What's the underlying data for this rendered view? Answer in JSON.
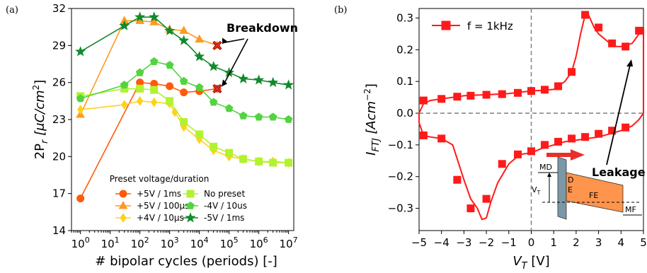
{
  "chart_data": [
    {
      "type": "line",
      "panel": "(a)",
      "xlabel": "# bipolar cycles (periods) [-]",
      "ylabel": "2P_r [μC/cm^2]",
      "xscale": "log",
      "xlim": [
        0.5,
        15000000
      ],
      "ylim": [
        14,
        32
      ],
      "yticks": [
        14,
        17,
        20,
        23,
        26,
        29,
        32
      ],
      "xtick_labels": [
        "10^0",
        "10^1",
        "10^2",
        "10^3",
        "10^4",
        "10^5",
        "10^6",
        "10^7"
      ],
      "legend_title": "Preset voltage/duration",
      "legend_placement": "lower-center",
      "series": [
        {
          "name": "+5V / 1ms",
          "color": "#ff5a0a",
          "marker": "circle",
          "x": [
            1,
            100,
            300,
            1000,
            3000,
            10000,
            40000
          ],
          "y": [
            16.6,
            26.0,
            25.9,
            25.7,
            25.2,
            25.3,
            25.5
          ]
        },
        {
          "name": "+5V / 100μs",
          "color": "#ff9a1f",
          "marker": "triangle",
          "x": [
            1,
            30,
            100,
            300,
            1000,
            3000,
            10000,
            40000
          ],
          "y": [
            23.4,
            31.0,
            31.0,
            30.9,
            30.3,
            30.2,
            29.5,
            29.0
          ]
        },
        {
          "name": "+4V / 10μs",
          "color": "#ffd21a",
          "marker": "diamond",
          "x": [
            1,
            30,
            100,
            300,
            1000,
            1500,
            3000,
            10000,
            30000,
            100000,
            300000,
            1000000,
            3000000,
            10000000
          ],
          "y": [
            23.8,
            24.2,
            24.5,
            24.4,
            24.3,
            23.6,
            22.4,
            21.4,
            20.5,
            20.0,
            19.8,
            19.6,
            19.6,
            19.5
          ]
        },
        {
          "name": "No preset",
          "color": "#b2f230",
          "marker": "square",
          "x": [
            1,
            30,
            100,
            300,
            1000,
            3000,
            10000,
            30000,
            100000,
            300000,
            1000000,
            3000000,
            10000000
          ],
          "y": [
            24.9,
            25.5,
            25.5,
            25.4,
            24.5,
            22.8,
            21.8,
            20.8,
            20.3,
            19.8,
            19.6,
            19.5,
            19.5
          ]
        },
        {
          "name": "-4V / 10us",
          "color": "#52d440",
          "marker": "pentagon",
          "x": [
            1,
            30,
            100,
            300,
            1000,
            3000,
            10000,
            30000,
            100000,
            300000,
            1000000,
            3000000,
            10000000
          ],
          "y": [
            24.7,
            25.8,
            26.8,
            27.7,
            27.4,
            26.1,
            25.6,
            24.4,
            23.9,
            23.3,
            23.2,
            23.2,
            23.0
          ]
        },
        {
          "name": "-5V / 1ms",
          "color": "#128a2c",
          "marker": "star",
          "x": [
            1,
            30,
            100,
            300,
            1000,
            3000,
            10000,
            30000,
            100000,
            300000,
            1000000,
            3000000,
            10000000
          ],
          "y": [
            28.5,
            30.6,
            31.3,
            31.3,
            30.2,
            29.4,
            28.1,
            27.3,
            26.8,
            26.3,
            26.2,
            26.0,
            25.8
          ]
        }
      ],
      "annotations": [
        {
          "text": "Breakdown",
          "points": [
            [
              40000,
              29.0
            ],
            [
              40000,
              25.5
            ]
          ]
        }
      ]
    },
    {
      "type": "line",
      "panel": "(b)",
      "xlabel": "V_T [V]",
      "ylabel": "I_FTJ [Acm^-2]",
      "xlim": [
        -5,
        5
      ],
      "ylim": [
        -0.37,
        0.33
      ],
      "xticks": [
        -5,
        -4,
        -3,
        -2,
        -1,
        0,
        1,
        2,
        3,
        4,
        5
      ],
      "xtick_labels": [
        "−5",
        "−4",
        "−3",
        "−2",
        "−1",
        "0",
        "1",
        "2",
        "3",
        "4",
        "5"
      ],
      "yticks": [
        -0.3,
        -0.2,
        -0.1,
        0.0,
        0.1,
        0.2,
        0.3
      ],
      "ytick_labels": [
        "−0.3",
        "−0.2",
        "−0.1",
        "0.0",
        "0.1",
        "0.2",
        "0.3"
      ],
      "legend_placement": "top-left",
      "series": [
        {
          "name": "f = 1kHz",
          "color": "#ff1a1a",
          "marker": "square",
          "upper": {
            "x": [
              -5,
              -4.8,
              -4.5,
              -4,
              -3.5,
              -3,
              -2.5,
              -2,
              -1.5,
              -1,
              -0.5,
              0,
              0.5,
              1,
              1.5,
              1.8,
              2.0,
              2.2,
              2.4,
              2.55,
              2.8,
              3.0,
              3.5,
              3.8,
              4.0,
              4.5,
              4.8,
              5.0
            ],
            "y": [
              0.0,
              0.03,
              0.04,
              0.045,
              0.05,
              0.055,
              0.057,
              0.058,
              0.06,
              0.062,
              0.066,
              0.07,
              0.072,
              0.075,
              0.1,
              0.13,
              0.18,
              0.25,
              0.31,
              0.31,
              0.27,
              0.25,
              0.22,
              0.21,
              0.21,
              0.22,
              0.25,
              0.27
            ]
          },
          "lower": {
            "x": [
              5.0,
              4.8,
              4.5,
              4.0,
              3.5,
              3.0,
              2.5,
              2.0,
              1.5,
              1.0,
              0.5,
              0.0,
              -0.5,
              -1.0,
              -1.5,
              -1.8,
              -2.0,
              -2.2,
              -2.4,
              -2.7,
              -3.0,
              -3.5,
              -4.0,
              -4.5,
              -4.8,
              -5.0
            ],
            "y": [
              0.0,
              -0.02,
              -0.04,
              -0.055,
              -0.065,
              -0.075,
              -0.08,
              -0.085,
              -0.09,
              -0.1,
              -0.11,
              -0.125,
              -0.13,
              -0.16,
              -0.22,
              -0.28,
              -0.33,
              -0.335,
              -0.3,
              -0.27,
              -0.21,
              -0.1,
              -0.08,
              -0.075,
              -0.07,
              -0.03
            ]
          }
        }
      ],
      "markers": {
        "x": [
          -4.8,
          -4.0,
          -3.3,
          -2.7,
          -2.0,
          -1.3,
          -0.6,
          0.0,
          0.6,
          1.2,
          1.8,
          2.4,
          3.0,
          3.6,
          4.2,
          4.8,
          4.2,
          3.6,
          3.0,
          2.4,
          1.8,
          1.2,
          0.6,
          0.0,
          -0.6,
          -1.3,
          -2.0,
          -2.7,
          -3.3,
          -4.0,
          -4.8
        ],
        "y": [
          0.04,
          0.045,
          0.052,
          0.055,
          0.058,
          0.06,
          0.064,
          0.07,
          0.074,
          0.085,
          0.13,
          0.31,
          0.27,
          0.22,
          0.21,
          0.26,
          -0.045,
          -0.055,
          -0.065,
          -0.075,
          -0.08,
          -0.09,
          -0.1,
          -0.12,
          -0.13,
          -0.16,
          -0.27,
          -0.3,
          -0.21,
          -0.08,
          -0.07
        ]
      },
      "annotations": [
        {
          "text": "Leakage"
        },
        {
          "text": "MD"
        },
        {
          "text": "D"
        },
        {
          "text": "E"
        },
        {
          "text": "FE"
        },
        {
          "text": "MF"
        },
        {
          "text": "V_T"
        }
      ]
    }
  ],
  "labels": {
    "panel_a": "(a)",
    "panel_b": "(b)",
    "breakdown": "Breakdown",
    "leakage": "Leakage",
    "legend_title": "Preset voltage/duration",
    "legend_b": "f = 1kHz",
    "md": "MD",
    "d": "D",
    "e": "E",
    "fe": "FE",
    "mf": "MF",
    "vt": "V"
  }
}
